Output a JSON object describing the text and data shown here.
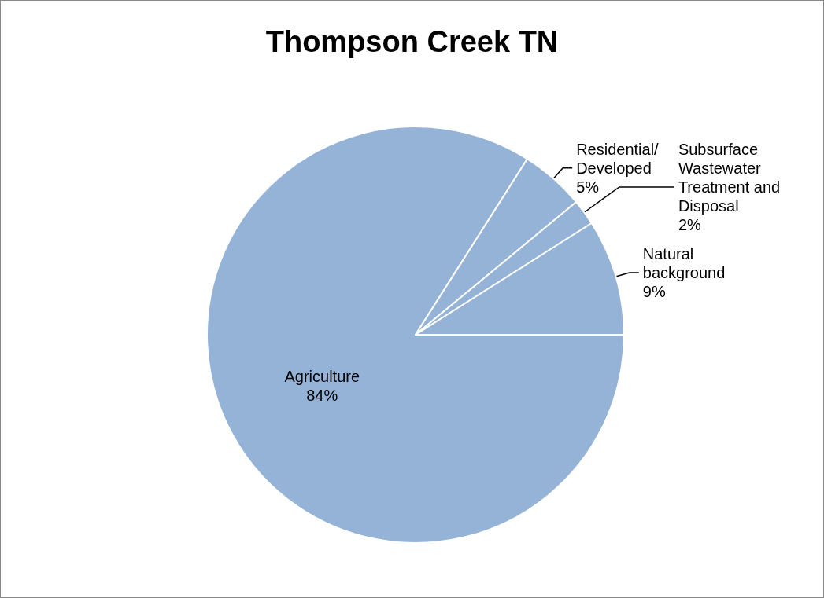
{
  "chart_data": {
    "type": "pie",
    "title": "Thompson Creek TN",
    "categories": [
      "Agriculture",
      "Residential/ Developed",
      "Subsurface Wastewater Treatment and Disposal",
      "Natural background"
    ],
    "values": [
      84,
      5,
      2,
      9
    ],
    "colors": [
      "#95b3d7",
      "#95b3d7",
      "#95b3d7",
      "#95b3d7"
    ],
    "value_labels": [
      "84%",
      "5%",
      "2%",
      "9%"
    ],
    "legend": false
  }
}
